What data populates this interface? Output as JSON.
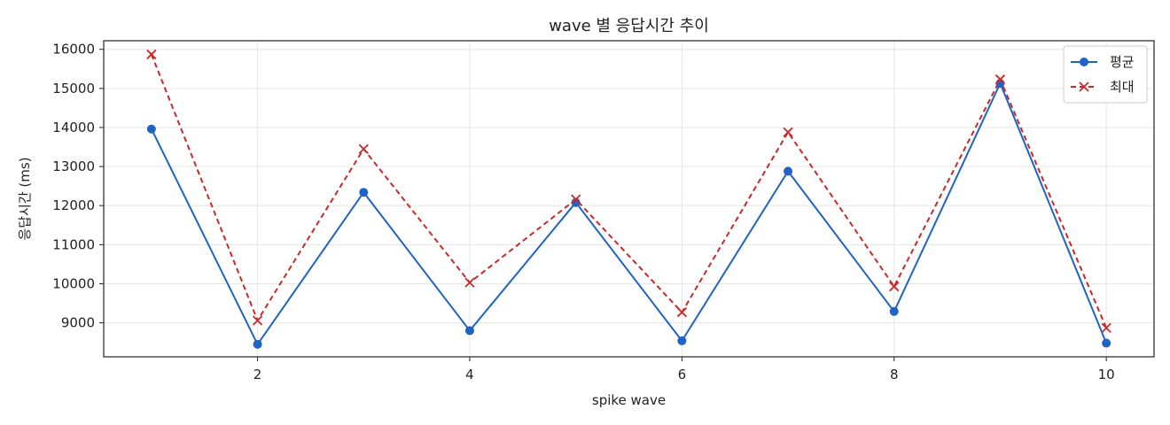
{
  "chart_data": {
    "type": "line",
    "title": "wave 별 응답시간 추이",
    "xlabel": "spike wave",
    "ylabel": "응답시간 (ms)",
    "x": [
      1,
      2,
      3,
      4,
      5,
      6,
      7,
      8,
      9,
      10
    ],
    "xticks": [
      2,
      4,
      6,
      8,
      10
    ],
    "yticks": [
      9000,
      10000,
      11000,
      12000,
      13000,
      14000,
      15000,
      16000
    ],
    "xlim": [
      0.55,
      10.45
    ],
    "ylim": [
      8130,
      16220
    ],
    "grid": true,
    "legend_position": "top-right",
    "series": [
      {
        "name": "평균",
        "values": [
          13960,
          8450,
          12340,
          8800,
          12080,
          8540,
          12880,
          9290,
          15130,
          8480
        ],
        "color": "#1f63c6",
        "marker": "circle",
        "line_style": "solid"
      },
      {
        "name": "최대",
        "values": [
          15870,
          9060,
          13450,
          10030,
          12160,
          9270,
          13880,
          9930,
          15230,
          8870
        ],
        "color": "#c8292b",
        "marker": "x",
        "line_style": "dashed"
      }
    ]
  }
}
